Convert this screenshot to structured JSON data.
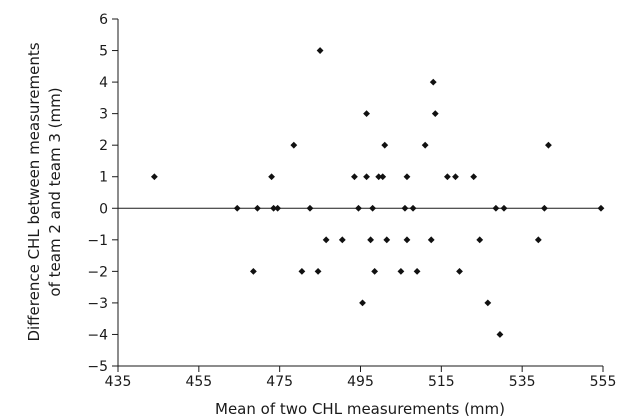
{
  "chart_data": {
    "type": "scatter",
    "xlabel": "Mean of two CHL measurements (mm)",
    "ylabel_lines": [
      "Difference CHL between measurements",
      "of team 2 and team 3 (mm)"
    ],
    "xlim": [
      435,
      555
    ],
    "ylim": [
      -5,
      6
    ],
    "x_ticks": [
      435,
      455,
      475,
      495,
      515,
      535,
      555
    ],
    "y_ticks": [
      -5,
      -4,
      -3,
      -2,
      -1,
      0,
      1,
      2,
      3,
      4,
      5,
      6
    ],
    "reference_line_y": 0,
    "grid": false,
    "marker": "diamond",
    "points": [
      {
        "x": 444,
        "y": 1
      },
      {
        "x": 464.5,
        "y": 0
      },
      {
        "x": 468.5,
        "y": -2
      },
      {
        "x": 469.5,
        "y": 0
      },
      {
        "x": 473,
        "y": 1
      },
      {
        "x": 473.5,
        "y": 0
      },
      {
        "x": 474.5,
        "y": 0
      },
      {
        "x": 478.5,
        "y": 2
      },
      {
        "x": 480.5,
        "y": -2
      },
      {
        "x": 482.5,
        "y": 0
      },
      {
        "x": 484.5,
        "y": -2
      },
      {
        "x": 485,
        "y": 5
      },
      {
        "x": 486.5,
        "y": -1
      },
      {
        "x": 490.5,
        "y": -1
      },
      {
        "x": 493.5,
        "y": 1
      },
      {
        "x": 494.5,
        "y": 0
      },
      {
        "x": 495.5,
        "y": -3
      },
      {
        "x": 496.5,
        "y": 3
      },
      {
        "x": 496.5,
        "y": 1
      },
      {
        "x": 497.5,
        "y": -1
      },
      {
        "x": 498,
        "y": 0
      },
      {
        "x": 498.5,
        "y": -2
      },
      {
        "x": 499.5,
        "y": 1
      },
      {
        "x": 500.5,
        "y": 1
      },
      {
        "x": 501,
        "y": 2
      },
      {
        "x": 501.5,
        "y": -1
      },
      {
        "x": 505,
        "y": -2
      },
      {
        "x": 506,
        "y": 0
      },
      {
        "x": 506.5,
        "y": 1
      },
      {
        "x": 506.5,
        "y": -1
      },
      {
        "x": 508,
        "y": 0
      },
      {
        "x": 509,
        "y": -2
      },
      {
        "x": 511,
        "y": 2
      },
      {
        "x": 512.5,
        "y": -1
      },
      {
        "x": 513,
        "y": 4
      },
      {
        "x": 513.5,
        "y": 3
      },
      {
        "x": 516.5,
        "y": 1
      },
      {
        "x": 518.5,
        "y": 1
      },
      {
        "x": 519.5,
        "y": -2
      },
      {
        "x": 523,
        "y": 1
      },
      {
        "x": 524.5,
        "y": -1
      },
      {
        "x": 526.5,
        "y": -3
      },
      {
        "x": 528.5,
        "y": 0
      },
      {
        "x": 529.5,
        "y": -4
      },
      {
        "x": 530.5,
        "y": 0
      },
      {
        "x": 539,
        "y": -1
      },
      {
        "x": 540.5,
        "y": 0
      },
      {
        "x": 541.5,
        "y": 2
      },
      {
        "x": 554.5,
        "y": 0
      }
    ]
  }
}
